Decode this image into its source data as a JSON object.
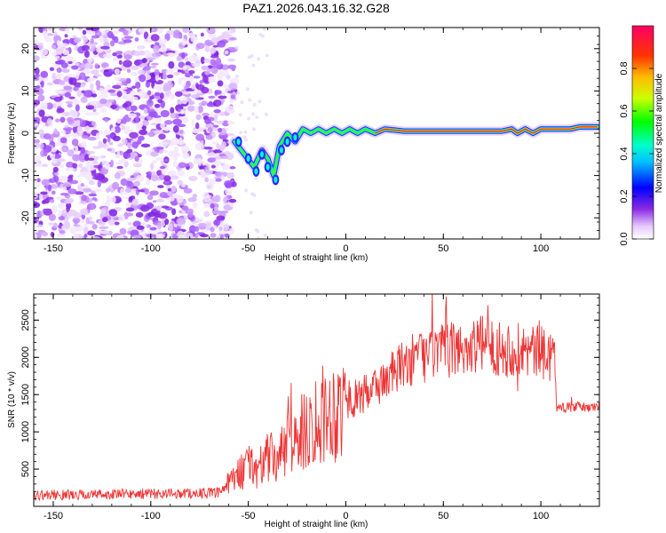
{
  "title": "PAZ1.2026.043.16.32.G28",
  "chart_data": [
    {
      "type": "heatmap",
      "xlabel": "Height of straight line (km)",
      "ylabel": "Frequency (Hz)",
      "xlim": [
        -160,
        130
      ],
      "ylim": [
        -25,
        25
      ],
      "x_ticks": [
        -150,
        -100,
        -50,
        0,
        50,
        100
      ],
      "y_ticks": [
        -20,
        -10,
        0,
        10,
        20
      ],
      "colorbar": {
        "label": "Normalized spectral amplitude",
        "range": [
          0,
          1
        ],
        "ticks": [
          0.0,
          0.2,
          0.4,
          0.6,
          0.8
        ],
        "tick_labels": [
          "0.0",
          "0.2",
          "0.4",
          "0.6",
          "0.8"
        ]
      },
      "ridge": {
        "x": [
          -57,
          -52,
          -47,
          -43,
          -40,
          -37,
          -34,
          -30,
          -26,
          -22,
          -18,
          -14,
          -10,
          -6,
          -2,
          2,
          6,
          10,
          15,
          20,
          30,
          40,
          50,
          60,
          70,
          80,
          85,
          88,
          92,
          96,
          100,
          105,
          110,
          115,
          120,
          125,
          129
        ],
        "freq": [
          -2,
          -5,
          -8,
          -4,
          -6,
          -10,
          -3,
          0,
          -2,
          1,
          0,
          1,
          0,
          1,
          0,
          1,
          0,
          1,
          0,
          1,
          0.5,
          0.5,
          0.5,
          0.5,
          0.5,
          0.5,
          1,
          0,
          1,
          0,
          1,
          1,
          1,
          1,
          1.5,
          1.5,
          1.5
        ]
      },
      "noise_region_x": [
        -160,
        -57
      ]
    },
    {
      "type": "line",
      "xlabel": "Height of straight line (km)",
      "ylabel": "SNR (10 * v/v)",
      "xlim": [
        -160,
        130
      ],
      "ylim": [
        0,
        2850
      ],
      "x_ticks": [
        -150,
        -100,
        -50,
        0,
        50,
        100
      ],
      "y_ticks": [
        500,
        1000,
        1500,
        2000,
        2500
      ],
      "color": "#ee3333",
      "trend": {
        "x": [
          -160,
          -65,
          -60,
          -55,
          -50,
          -45,
          -40,
          -35,
          -30,
          -25,
          -20,
          -15,
          -10,
          -5,
          0,
          5,
          10,
          15,
          20,
          25,
          30,
          35,
          40,
          45,
          50,
          55,
          60,
          65,
          70,
          75,
          80,
          85,
          90,
          95,
          100,
          107,
          108,
          115,
          120,
          125,
          129
        ],
        "snr": [
          150,
          180,
          300,
          420,
          560,
          500,
          650,
          620,
          820,
          900,
          1050,
          1200,
          1250,
          1300,
          1400,
          1450,
          1500,
          1600,
          1700,
          1800,
          1900,
          1980,
          2020,
          2050,
          2080,
          2100,
          2120,
          2150,
          2180,
          2150,
          2120,
          2100,
          2100,
          2080,
          2050,
          2050,
          1320,
          1330,
          1340,
          1320,
          1350
        ]
      }
    }
  ]
}
